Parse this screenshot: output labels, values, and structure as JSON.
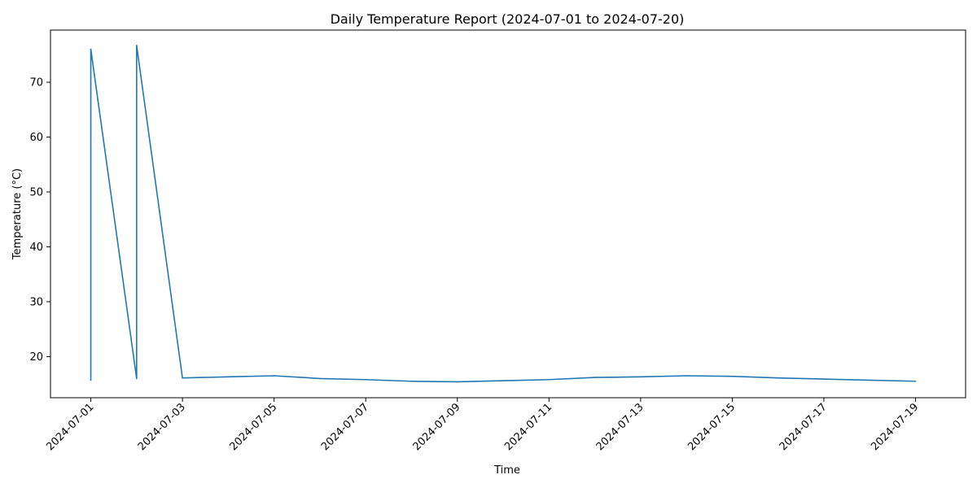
{
  "chart_data": {
    "type": "line",
    "title": "Daily Temperature Report (2024-07-01 to 2024-07-20)",
    "xlabel": "Time",
    "ylabel": "Temperature (°C)",
    "xlim": [
      "2024-06-30 02:52",
      "2024-07-20 02:14"
    ],
    "ylim": [
      12.5,
      79.5
    ],
    "grid": false,
    "legend": "none",
    "x_ticks": [
      "2024-07-01",
      "2024-07-03",
      "2024-07-05",
      "2024-07-07",
      "2024-07-09",
      "2024-07-11",
      "2024-07-13",
      "2024-07-15",
      "2024-07-17",
      "2024-07-19"
    ],
    "y_ticks": [
      20,
      30,
      40,
      50,
      60,
      70
    ],
    "series": [
      {
        "color": "#1f77b4",
        "points": [
          {
            "x": "2024-07-01",
            "y": 15.7
          },
          {
            "x": "2024-07-01",
            "y": 76.0
          },
          {
            "x": "2024-07-02",
            "y": 16.0
          },
          {
            "x": "2024-07-02",
            "y": 76.7
          },
          {
            "x": "2024-07-03",
            "y": 16.1
          },
          {
            "x": "2024-07-04",
            "y": 16.3
          },
          {
            "x": "2024-07-05",
            "y": 16.5
          },
          {
            "x": "2024-07-06",
            "y": 16.0
          },
          {
            "x": "2024-07-07",
            "y": 15.8
          },
          {
            "x": "2024-07-08",
            "y": 15.5
          },
          {
            "x": "2024-07-09",
            "y": 15.4
          },
          {
            "x": "2024-07-10",
            "y": 15.6
          },
          {
            "x": "2024-07-11",
            "y": 15.8
          },
          {
            "x": "2024-07-12",
            "y": 16.2
          },
          {
            "x": "2024-07-13",
            "y": 16.3
          },
          {
            "x": "2024-07-14",
            "y": 16.5
          },
          {
            "x": "2024-07-15",
            "y": 16.4
          },
          {
            "x": "2024-07-16",
            "y": 16.1
          },
          {
            "x": "2024-07-17",
            "y": 15.9
          },
          {
            "x": "2024-07-18",
            "y": 15.7
          },
          {
            "x": "2024-07-19",
            "y": 15.5
          }
        ]
      }
    ]
  }
}
